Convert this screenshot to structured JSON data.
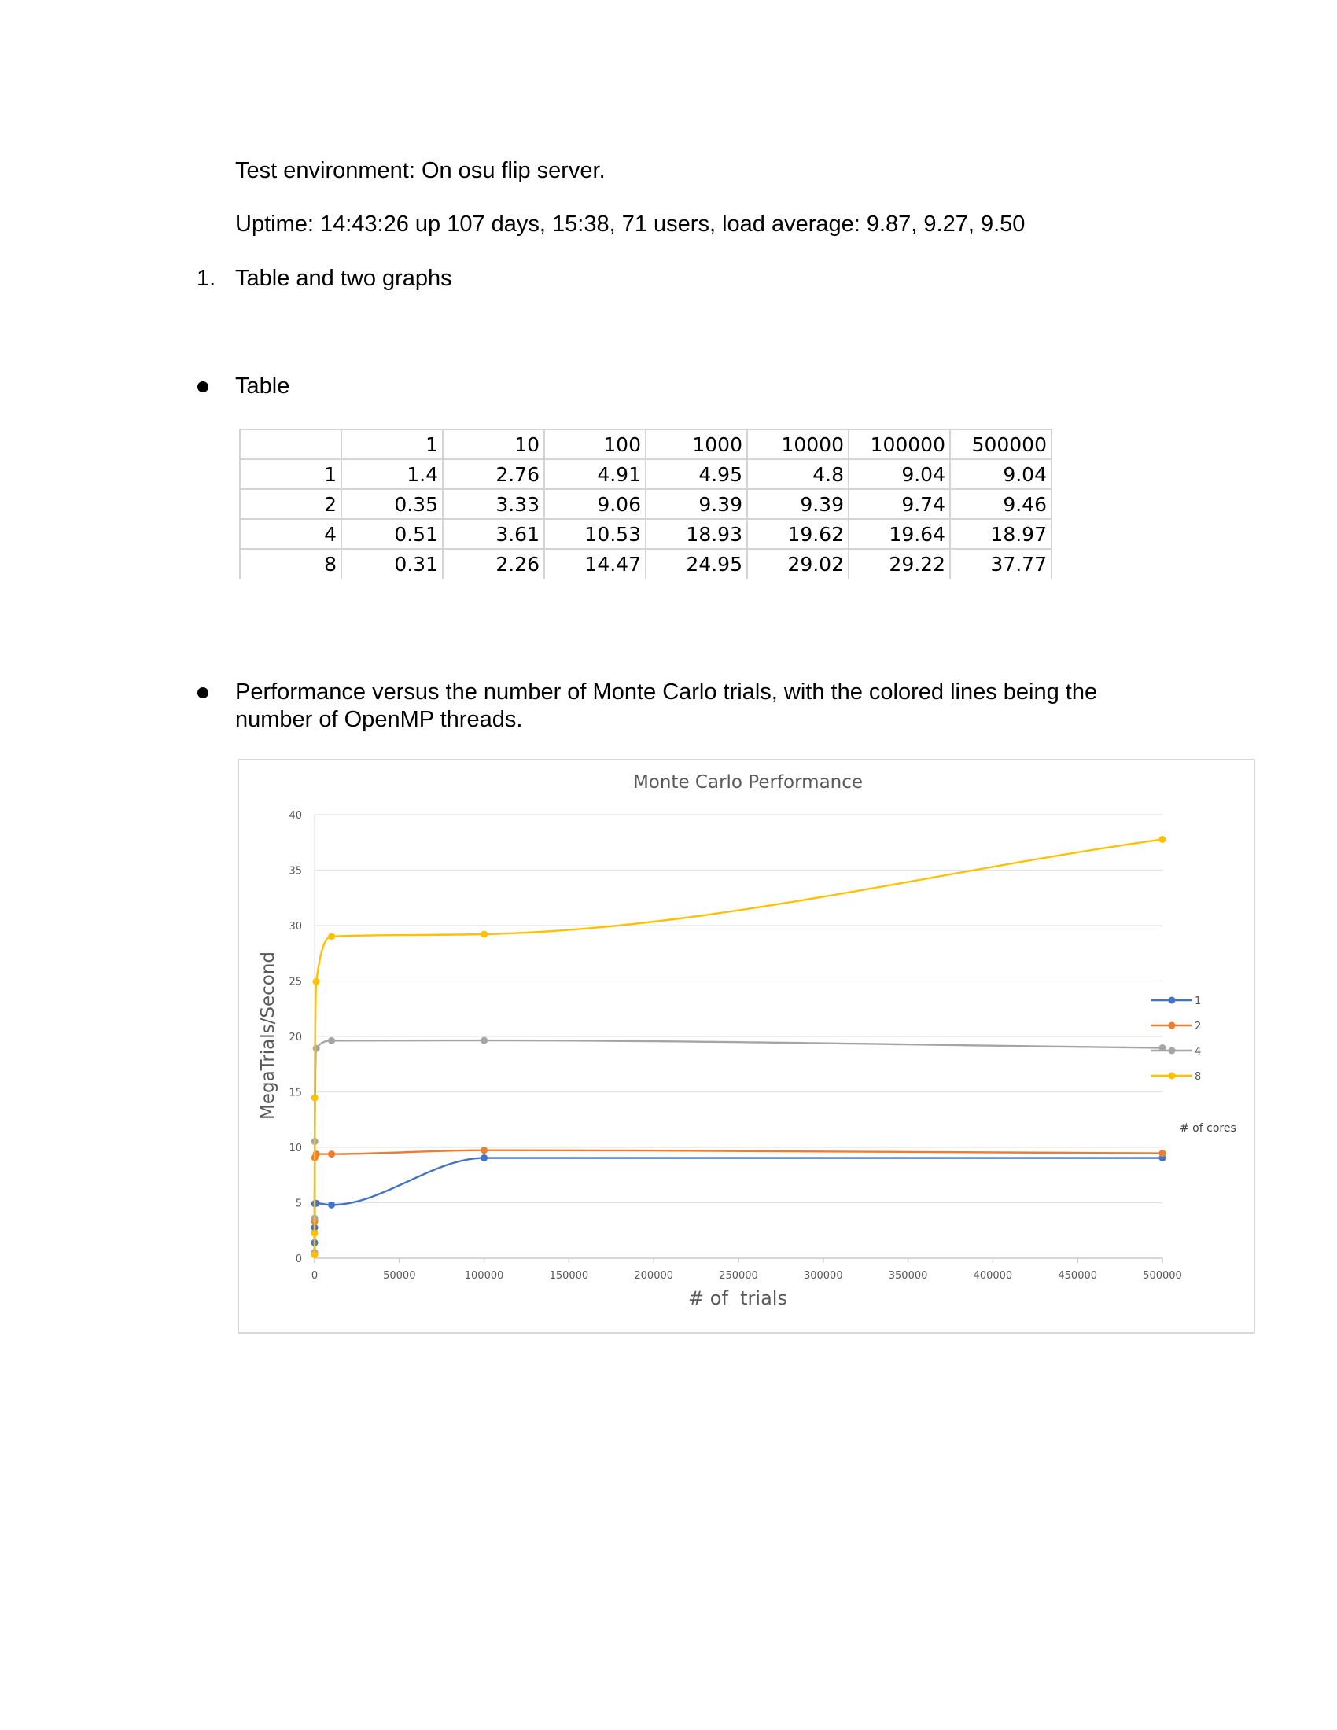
{
  "doc": {
    "env_line": "Test environment: On osu flip server.",
    "uptime_line": "Uptime:  14:43:26 up 107 days, 15:38, 71 users,  load average: 9.87, 9.27, 9.50",
    "item_number": "1.",
    "item_text": "Table and two graphs",
    "bullet1_text": "Table",
    "bullet2_line1": "Performance versus the number of Monte Carlo trials, with the colored lines being the",
    "bullet2_line2": "number of OpenMP threads."
  },
  "table": {
    "header": [
      "",
      "1",
      "10",
      "100",
      "1000",
      "10000",
      "100000",
      "500000"
    ],
    "rows": [
      [
        "1",
        "1.4",
        "2.76",
        "4.91",
        "4.95",
        "4.8",
        "9.04",
        "9.04"
      ],
      [
        "2",
        "0.35",
        "3.33",
        "9.06",
        "9.39",
        "9.39",
        "9.74",
        "9.46"
      ],
      [
        "4",
        "0.51",
        "3.61",
        "10.53",
        "18.93",
        "19.62",
        "19.64",
        "18.97"
      ],
      [
        "8",
        "0.31",
        "2.26",
        "14.47",
        "24.95",
        "29.02",
        "29.22",
        "37.77"
      ]
    ]
  },
  "chart_data": {
    "type": "line",
    "title": "Monte Carlo Performance",
    "xlabel": "# of  trials",
    "ylabel": "MegaTrials/Second",
    "x": [
      1,
      10,
      100,
      1000,
      10000,
      100000,
      500000
    ],
    "xlim": [
      0,
      500000
    ],
    "ylim": [
      0,
      40
    ],
    "xticks": [
      "0",
      "50000",
      "100000",
      "150000",
      "200000",
      "250000",
      "300000",
      "350000",
      "400000",
      "450000",
      "500000"
    ],
    "yticks": [
      "0",
      "5",
      "10",
      "15",
      "20",
      "25",
      "30",
      "35",
      "40"
    ],
    "grid": "horizontal",
    "legend_position": "right",
    "legend_title": "# of cores",
    "series": [
      {
        "name": "1",
        "color": "#4472c4",
        "values": [
          1.4,
          2.76,
          4.91,
          4.95,
          4.8,
          9.04,
          9.04
        ]
      },
      {
        "name": "2",
        "color": "#ed7d31",
        "values": [
          0.35,
          3.33,
          9.06,
          9.39,
          9.39,
          9.74,
          9.46
        ]
      },
      {
        "name": "4",
        "color": "#a5a5a5",
        "values": [
          0.51,
          3.61,
          10.53,
          18.93,
          19.62,
          19.64,
          18.97
        ]
      },
      {
        "name": "8",
        "color": "#ffc000",
        "values": [
          0.31,
          2.26,
          14.47,
          24.95,
          29.02,
          29.22,
          37.77
        ]
      }
    ]
  }
}
